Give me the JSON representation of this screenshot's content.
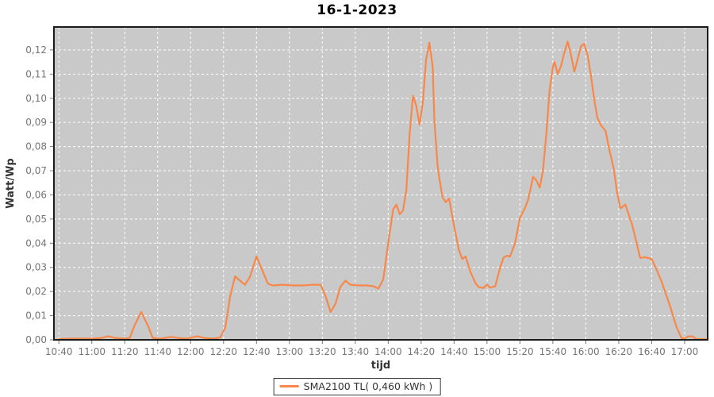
{
  "title": "16-1-2023",
  "colors": {
    "line": "#f8884a",
    "plot_bg": "#c9c9c9",
    "grid": "#ffffff",
    "border": "#1b1b1b",
    "tick": "#757575",
    "axis_label": "#333333"
  },
  "chart_data": {
    "type": "line",
    "title": "16-1-2023",
    "xlabel": "tijd",
    "ylabel": "Watt/Wp",
    "grid": true,
    "legend": {
      "position": "bottom-center",
      "label": "SMA2100 TL( 0,460 kWh )"
    },
    "x_ticks": [
      "10:40",
      "11:00",
      "11:20",
      "11:40",
      "12:00",
      "12:20",
      "12:40",
      "13:00",
      "13:20",
      "13:40",
      "14:00",
      "14:20",
      "14:40",
      "15:00",
      "15:20",
      "15:40",
      "16:00",
      "16:20",
      "16:40",
      "17:00"
    ],
    "y_ticks": [
      "0,00",
      "0,01",
      "0,02",
      "0,03",
      "0,04",
      "0,05",
      "0,06",
      "0,07",
      "0,08",
      "0,09",
      "0,10",
      "0,11",
      "0,12"
    ],
    "y_tick_step": 0.01,
    "ylim": [
      0,
      0.1295
    ],
    "xlim_minutes": [
      637,
      1034
    ],
    "series": [
      {
        "name": "SMA2100 TL( 0,460 kWh )",
        "color": "#f8884a",
        "points": [
          [
            "10:40",
            0.0003
          ],
          [
            "10:46",
            0.0005
          ],
          [
            "10:54",
            0.0005
          ],
          [
            "11:00",
            0.0005
          ],
          [
            "11:06",
            0.0008
          ],
          [
            "11:10",
            0.0015
          ],
          [
            "11:14",
            0.0008
          ],
          [
            "11:20",
            0.0005
          ],
          [
            "11:23",
            0.0008
          ],
          [
            "11:26",
            0.006
          ],
          [
            "11:30",
            0.0115
          ],
          [
            "11:34",
            0.006
          ],
          [
            "11:37",
            0.0008
          ],
          [
            "11:42",
            0.0005
          ],
          [
            "11:48",
            0.0012
          ],
          [
            "11:52",
            0.0008
          ],
          [
            "11:58",
            0.0005
          ],
          [
            "12:04",
            0.0015
          ],
          [
            "12:08",
            0.0008
          ],
          [
            "12:14",
            0.0005
          ],
          [
            "12:18",
            0.001
          ],
          [
            "12:21",
            0.005
          ],
          [
            "12:24",
            0.018
          ],
          [
            "12:27",
            0.0263
          ],
          [
            "12:30",
            0.0245
          ],
          [
            "12:33",
            0.0228
          ],
          [
            "12:36",
            0.026
          ],
          [
            "12:40",
            0.0345
          ],
          [
            "12:44",
            0.028
          ],
          [
            "12:47",
            0.0232
          ],
          [
            "12:50",
            0.0225
          ],
          [
            "12:56",
            0.0228
          ],
          [
            "13:02",
            0.0225
          ],
          [
            "13:08",
            0.0225
          ],
          [
            "13:14",
            0.0228
          ],
          [
            "13:19",
            0.0228
          ],
          [
            "13:22",
            0.018
          ],
          [
            "13:25",
            0.0115
          ],
          [
            "13:28",
            0.015
          ],
          [
            "13:31",
            0.022
          ],
          [
            "13:34",
            0.0245
          ],
          [
            "13:37",
            0.0228
          ],
          [
            "13:42",
            0.0225
          ],
          [
            "13:47",
            0.0225
          ],
          [
            "13:51",
            0.0222
          ],
          [
            "13:54",
            0.0212
          ],
          [
            "13:57",
            0.025
          ],
          [
            "14:00",
            0.04
          ],
          [
            "14:03",
            0.054
          ],
          [
            "14:05",
            0.056
          ],
          [
            "14:07",
            0.052
          ],
          [
            "14:09",
            0.0535
          ],
          [
            "14:11",
            0.062
          ],
          [
            "14:13",
            0.085
          ],
          [
            "14:15",
            0.101
          ],
          [
            "14:17",
            0.097
          ],
          [
            "14:19",
            0.089
          ],
          [
            "14:21",
            0.098
          ],
          [
            "14:23",
            0.116
          ],
          [
            "14:25",
            0.123
          ],
          [
            "14:27",
            0.113
          ],
          [
            "14:28",
            0.091
          ],
          [
            "14:30",
            0.072
          ],
          [
            "14:31",
            0.067
          ],
          [
            "14:33",
            0.059
          ],
          [
            "14:35",
            0.057
          ],
          [
            "14:37",
            0.0585
          ],
          [
            "14:40",
            0.047
          ],
          [
            "14:43",
            0.037
          ],
          [
            "14:45",
            0.0335
          ],
          [
            "14:47",
            0.0345
          ],
          [
            "14:50",
            0.028
          ],
          [
            "14:53",
            0.0235
          ],
          [
            "14:55",
            0.0218
          ],
          [
            "14:58",
            0.0215
          ],
          [
            "15:00",
            0.0228
          ],
          [
            "15:02",
            0.0216
          ],
          [
            "15:05",
            0.0222
          ],
          [
            "15:08",
            0.03
          ],
          [
            "15:10",
            0.034
          ],
          [
            "15:12",
            0.0348
          ],
          [
            "15:14",
            0.0345
          ],
          [
            "15:17",
            0.04
          ],
          [
            "15:20",
            0.0505
          ],
          [
            "15:23",
            0.0545
          ],
          [
            "15:25",
            0.058
          ],
          [
            "15:28",
            0.0675
          ],
          [
            "15:30",
            0.066
          ],
          [
            "15:32",
            0.063
          ],
          [
            "15:34",
            0.07
          ],
          [
            "15:36",
            0.085
          ],
          [
            "15:38",
            0.103
          ],
          [
            "15:40",
            0.113
          ],
          [
            "15:41",
            0.115
          ],
          [
            "15:43",
            0.11
          ],
          [
            "15:45",
            0.1135
          ],
          [
            "15:47",
            0.119
          ],
          [
            "15:49",
            0.1235
          ],
          [
            "15:51",
            0.118
          ],
          [
            "15:53",
            0.111
          ],
          [
            "15:55",
            0.116
          ],
          [
            "15:57",
            0.1215
          ],
          [
            "15:59",
            0.1225
          ],
          [
            "16:01",
            0.118
          ],
          [
            "16:03",
            0.11
          ],
          [
            "16:05",
            0.1
          ],
          [
            "16:07",
            0.092
          ],
          [
            "16:09",
            0.089
          ],
          [
            "16:12",
            0.0865
          ],
          [
            "16:14",
            0.0795
          ],
          [
            "16:17",
            0.0707
          ],
          [
            "16:19",
            0.061
          ],
          [
            "16:21",
            0.0544
          ],
          [
            "16:24",
            0.056
          ],
          [
            "16:26",
            0.052
          ],
          [
            "16:28",
            0.048
          ],
          [
            "16:31",
            0.0397
          ],
          [
            "16:33",
            0.0339
          ],
          [
            "16:36",
            0.0342
          ],
          [
            "16:40",
            0.0335
          ],
          [
            "16:43",
            0.029
          ],
          [
            "16:46",
            0.0241
          ],
          [
            "16:51",
            0.0143
          ],
          [
            "16:55",
            0.0055
          ],
          [
            "16:58",
            0.0008
          ],
          [
            "17:00",
            0.0005
          ],
          [
            "17:02",
            0.0014
          ],
          [
            "17:05",
            0.0014
          ],
          [
            "17:07",
            0.0003
          ],
          [
            "17:10",
            0.0003
          ],
          [
            "17:13",
            0.0003
          ]
        ]
      }
    ]
  }
}
